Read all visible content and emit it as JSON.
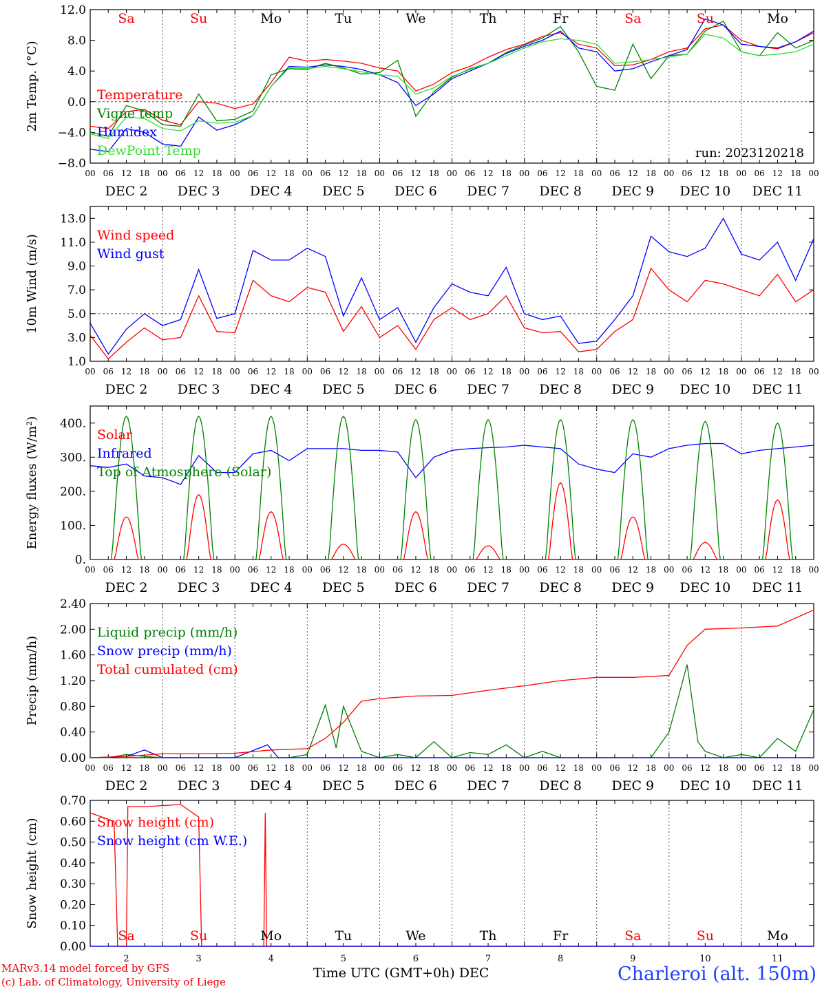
{
  "run_label": "run: 2023120218",
  "station": "Charleroi (alt. 150m)",
  "credit_line1": "MARv3.14 model forced by GFS",
  "credit_line2": "(c) Lab. of Climatology, University of Liege",
  "x_axis_title": "Time UTC (GMT+0h)",
  "x_axis_month": "DEC",
  "colors": {
    "red": "#ff0000",
    "green": "#008000",
    "blue": "#0000ff",
    "lightgreen": "#33dd33",
    "weekend": "#e8000b"
  },
  "day_names": [
    "Sa",
    "Su",
    "Mo",
    "Tu",
    "We",
    "Th",
    "Fr",
    "Sa",
    "Su",
    "Mo"
  ],
  "weekend_flags": [
    true,
    true,
    false,
    false,
    false,
    false,
    false,
    true,
    true,
    false
  ],
  "day_numbers": [
    "2",
    "3",
    "4",
    "5",
    "6",
    "7",
    "8",
    "9",
    "10",
    "11"
  ],
  "hour_ticks": [
    "00",
    "06",
    "12",
    "18"
  ],
  "last_hour_tick": "00",
  "chart_data": [
    {
      "type": "line",
      "ylabel": "2m Temp. (°C)",
      "ylim": [
        -8,
        12
      ],
      "yticks": [
        "12.0",
        "8.0",
        "4.0",
        "0.0",
        "−4.0",
        "−8.0"
      ],
      "yticks_values": [
        12,
        8,
        4,
        0,
        -4,
        -8
      ],
      "reference_line": 0,
      "x_unit": "days since 2023-12-02 00 UTC",
      "series": [
        {
          "name": "Temperature",
          "color": "red",
          "x": [
            0,
            0.25,
            0.5,
            0.75,
            1,
            1.25,
            1.5,
            1.75,
            2,
            2.25,
            2.5,
            2.75,
            3,
            3.25,
            3.5,
            3.75,
            4,
            4.25,
            4.5,
            4.75,
            5,
            5.25,
            5.5,
            5.75,
            6,
            6.25,
            6.5,
            6.75,
            7,
            7.25,
            7.5,
            7.75,
            8,
            8.25,
            8.5,
            8.75,
            9,
            9.25,
            9.5,
            9.75,
            10
          ],
          "y": [
            -3.2,
            -3.5,
            -1.3,
            -1.0,
            -2.4,
            -3.0,
            0.0,
            -0.2,
            -0.9,
            -0.3,
            2.5,
            5.8,
            5.3,
            5.5,
            5.3,
            5.0,
            4.4,
            4.0,
            1.4,
            2.3,
            3.8,
            4.6,
            5.8,
            6.8,
            7.5,
            8.5,
            9.0,
            7.5,
            7.0,
            4.7,
            4.8,
            5.5,
            6.5,
            7.0,
            9.5,
            10.0,
            8.0,
            7.2,
            6.9,
            7.8,
            9.0
          ]
        },
        {
          "name": "Vigne temp",
          "color": "green",
          "x": [
            0,
            0.25,
            0.5,
            0.75,
            1,
            1.25,
            1.5,
            1.75,
            2,
            2.25,
            2.5,
            2.75,
            3,
            3.25,
            3.5,
            3.75,
            4,
            4.25,
            4.5,
            4.75,
            5,
            5.25,
            5.5,
            5.75,
            6,
            6.25,
            6.5,
            6.75,
            7,
            7.25,
            7.5,
            7.75,
            8,
            8.25,
            8.5,
            8.75,
            9,
            9.25,
            9.5,
            9.75,
            10
          ],
          "y": [
            -4.0,
            -4.5,
            -0.5,
            -1.2,
            -3.0,
            -3.2,
            1.0,
            -2.5,
            -2.3,
            -1.2,
            3.5,
            4.3,
            4.2,
            5.0,
            4.4,
            3.6,
            3.8,
            5.4,
            -1.9,
            1.3,
            3.2,
            4.3,
            5.0,
            6.4,
            7.4,
            8.3,
            9.8,
            6.5,
            2.0,
            1.5,
            7.5,
            3.0,
            6.0,
            6.2,
            9.2,
            10.5,
            6.5,
            6.0,
            9.0,
            7.0,
            8.0
          ]
        },
        {
          "name": "Humidex",
          "color": "blue",
          "x": [
            0,
            0.25,
            0.5,
            0.75,
            1,
            1.25,
            1.5,
            1.75,
            2,
            2.25,
            2.5,
            2.75,
            3,
            3.25,
            3.5,
            3.75,
            4,
            4.25,
            4.5,
            4.75,
            5,
            5.25,
            5.5,
            5.75,
            6,
            6.25,
            6.5,
            6.75,
            7,
            7.25,
            7.5,
            7.75,
            8,
            8.25,
            8.5,
            8.75,
            9,
            9.25,
            9.5,
            9.75,
            10
          ],
          "y": [
            -6.2,
            -6.5,
            -3.5,
            -4.0,
            -5.5,
            -5.8,
            -2.0,
            -3.7,
            -3.0,
            -1.8,
            2.0,
            4.6,
            4.5,
            4.8,
            4.6,
            4.2,
            3.5,
            2.5,
            -0.5,
            1.0,
            3.0,
            4.0,
            5.0,
            6.3,
            7.2,
            8.0,
            9.2,
            7.0,
            6.5,
            4.0,
            4.3,
            5.2,
            6.0,
            6.8,
            10.8,
            10.0,
            7.5,
            7.2,
            7.0,
            7.8,
            9.2
          ]
        },
        {
          "name": "DewPoint Temp",
          "color": "lightgreen",
          "x": [
            0,
            0.25,
            0.5,
            0.75,
            1,
            1.25,
            1.5,
            1.75,
            2,
            2.25,
            2.5,
            2.75,
            3,
            3.25,
            3.5,
            3.75,
            4,
            4.25,
            4.5,
            4.75,
            5,
            5.25,
            5.5,
            5.75,
            6,
            6.25,
            6.5,
            6.75,
            7,
            7.25,
            7.5,
            7.75,
            8,
            8.25,
            8.5,
            8.75,
            9,
            9.25,
            9.5,
            9.75,
            10
          ],
          "y": [
            -4.2,
            -4.8,
            -2.0,
            -2.2,
            -3.5,
            -3.8,
            -2.5,
            -2.8,
            -2.7,
            -1.8,
            2.0,
            4.4,
            4.3,
            4.6,
            4.3,
            3.9,
            3.5,
            3.3,
            1.0,
            1.8,
            3.3,
            4.2,
            5.0,
            6.0,
            7.0,
            7.8,
            8.2,
            8.0,
            7.5,
            5.0,
            5.2,
            5.5,
            5.8,
            6.2,
            8.8,
            8.3,
            6.5,
            6.0,
            6.2,
            6.5,
            7.5
          ]
        }
      ],
      "legend": [
        "Temperature",
        "Vigne temp",
        "Humidex",
        "DewPoint Temp"
      ]
    },
    {
      "type": "line",
      "ylabel": "10m Wind (m/s)",
      "ylim": [
        1,
        14
      ],
      "yticks": [
        "13.0",
        "11.0",
        "9.0",
        "7.0",
        "5.0",
        "3.0",
        "1.0"
      ],
      "yticks_values": [
        13,
        11,
        9,
        7,
        5,
        3,
        1
      ],
      "reference_line": 5,
      "series": [
        {
          "name": "Wind speed",
          "color": "red",
          "x": [
            0,
            0.25,
            0.5,
            0.75,
            1,
            1.25,
            1.5,
            1.75,
            2,
            2.25,
            2.5,
            2.75,
            3,
            3.25,
            3.5,
            3.75,
            4,
            4.25,
            4.5,
            4.75,
            5,
            5.25,
            5.5,
            5.75,
            6,
            6.25,
            6.5,
            6.75,
            7,
            7.25,
            7.5,
            7.75,
            8,
            8.25,
            8.5,
            8.75,
            9,
            9.25,
            9.5,
            9.75,
            10
          ],
          "y": [
            3.2,
            1.2,
            2.6,
            3.8,
            2.8,
            3.0,
            6.5,
            3.5,
            3.4,
            7.8,
            6.5,
            6.0,
            7.2,
            6.8,
            3.5,
            5.6,
            3.0,
            4.0,
            2.0,
            4.5,
            5.5,
            4.5,
            5.0,
            6.5,
            3.8,
            3.4,
            3.5,
            1.8,
            2.0,
            3.5,
            4.5,
            8.8,
            7.0,
            6.0,
            7.8,
            7.5,
            7.0,
            6.5,
            8.3,
            6.0,
            7.0
          ]
        },
        {
          "name": "Wind gust",
          "color": "blue",
          "x": [
            0,
            0.25,
            0.5,
            0.75,
            1,
            1.25,
            1.5,
            1.75,
            2,
            2.25,
            2.5,
            2.75,
            3,
            3.25,
            3.5,
            3.75,
            4,
            4.25,
            4.5,
            4.75,
            5,
            5.25,
            5.5,
            5.75,
            6,
            6.25,
            6.5,
            6.75,
            7,
            7.25,
            7.5,
            7.75,
            8,
            8.25,
            8.5,
            8.75,
            9,
            9.25,
            9.5,
            9.75,
            10
          ],
          "y": [
            4.2,
            1.6,
            3.7,
            5.0,
            4.0,
            4.5,
            8.7,
            4.6,
            5.0,
            10.3,
            9.5,
            9.5,
            10.5,
            9.8,
            4.8,
            8.0,
            4.5,
            5.5,
            2.6,
            5.5,
            7.5,
            6.8,
            6.5,
            8.9,
            5.0,
            4.5,
            4.8,
            2.5,
            2.7,
            4.5,
            6.5,
            11.5,
            10.2,
            9.8,
            10.5,
            13.0,
            10.0,
            9.5,
            11.0,
            7.8,
            11.3
          ]
        }
      ],
      "legend": [
        "Wind speed",
        "Wind gust"
      ]
    },
    {
      "type": "line",
      "ylabel": "Energy fluxes (W/m²)",
      "ylim": [
        0,
        450
      ],
      "yticks": [
        "400.",
        "300.",
        "200.",
        "100.",
        "0."
      ],
      "yticks_values": [
        400,
        300,
        200,
        100,
        0
      ],
      "series": [
        {
          "name": "Solar",
          "color": "red",
          "day_peaks": [
            125,
            190,
            140,
            45,
            140,
            40,
            225,
            125,
            50,
            175
          ]
        },
        {
          "name": "Infrared",
          "color": "blue",
          "x": [
            0,
            0.25,
            0.5,
            0.75,
            1,
            1.25,
            1.5,
            1.75,
            2,
            2.25,
            2.5,
            2.75,
            3,
            3.25,
            3.5,
            3.75,
            4,
            4.25,
            4.5,
            4.75,
            5,
            5.25,
            5.5,
            5.75,
            6,
            6.25,
            6.5,
            6.75,
            7,
            7.25,
            7.5,
            7.75,
            8,
            8.25,
            8.5,
            8.75,
            9,
            9.25,
            9.5,
            9.75,
            10
          ],
          "y": [
            275,
            270,
            280,
            245,
            240,
            220,
            305,
            255,
            255,
            310,
            320,
            290,
            325,
            325,
            325,
            320,
            320,
            315,
            240,
            300,
            320,
            325,
            328,
            330,
            335,
            330,
            325,
            280,
            265,
            255,
            310,
            300,
            325,
            335,
            340,
            340,
            310,
            320,
            325,
            330,
            335
          ]
        },
        {
          "name": "Top of Atmosphere (Solar)",
          "color": "green",
          "day_peaks": [
            420,
            420,
            420,
            420,
            410,
            410,
            410,
            410,
            405,
            400
          ]
        }
      ],
      "legend": [
        "Solar",
        "Infrared",
        "Top of Atmosphere (Solar)"
      ]
    },
    {
      "type": "line",
      "ylabel": "Precip (mm/h)",
      "ylim": [
        0,
        2.4
      ],
      "yticks": [
        "2.40",
        "2.00",
        "1.60",
        "1.20",
        "0.80",
        "0.40",
        "0.00"
      ],
      "yticks_values": [
        2.4,
        2.0,
        1.6,
        1.2,
        0.8,
        0.4,
        0.0
      ],
      "series": [
        {
          "name": "Liquid precip (mm/h)",
          "color": "green",
          "x": [
            0,
            0.25,
            0.5,
            0.75,
            1,
            1.25,
            1.5,
            1.75,
            2,
            2.25,
            2.5,
            2.75,
            3,
            3.25,
            3.4,
            3.5,
            3.75,
            4,
            4.25,
            4.5,
            4.75,
            5,
            5.25,
            5.5,
            5.75,
            6,
            6.25,
            6.5,
            6.75,
            7,
            7.25,
            7.5,
            7.75,
            8,
            8.25,
            8.4,
            8.5,
            8.75,
            9,
            9.25,
            9.5,
            9.75,
            10
          ],
          "y": [
            0.0,
            0.0,
            0.05,
            0.02,
            0.0,
            0.0,
            0.0,
            0.0,
            0.0,
            0.0,
            0.0,
            0.0,
            0.05,
            0.82,
            0.15,
            0.8,
            0.1,
            0.0,
            0.05,
            0.0,
            0.25,
            0.0,
            0.08,
            0.05,
            0.2,
            0.0,
            0.1,
            0.0,
            0.0,
            0.0,
            0.0,
            0.0,
            0.0,
            0.4,
            1.45,
            0.25,
            0.1,
            0.0,
            0.05,
            0.0,
            0.3,
            0.1,
            0.75
          ]
        },
        {
          "name": "Snow precip (mm/h)",
          "color": "blue",
          "x": [
            0,
            0.5,
            0.75,
            1,
            2,
            2.45,
            2.6,
            3,
            4,
            5,
            6,
            10
          ],
          "y": [
            0.0,
            0.02,
            0.12,
            0.0,
            0.0,
            0.2,
            0.0,
            0.0,
            0.0,
            0.0,
            0.0,
            0.0
          ]
        },
        {
          "name": "Total cumulated (cm)",
          "color": "red",
          "x": [
            0,
            0.5,
            1,
            1.5,
            2,
            2.5,
            3,
            3.25,
            3.5,
            3.75,
            4,
            4.5,
            5,
            5.5,
            6,
            6.5,
            7,
            7.5,
            8,
            8.25,
            8.5,
            9,
            9.5,
            10
          ],
          "y": [
            0.0,
            0.02,
            0.06,
            0.06,
            0.07,
            0.12,
            0.14,
            0.3,
            0.55,
            0.88,
            0.92,
            0.96,
            0.97,
            1.05,
            1.12,
            1.2,
            1.25,
            1.25,
            1.28,
            1.75,
            2.0,
            2.02,
            2.05,
            2.3
          ]
        }
      ],
      "legend": [
        "Liquid precip (mm/h)",
        "Snow precip (mm/h)",
        "Total cumulated (cm)"
      ]
    },
    {
      "type": "line",
      "ylabel": "Snow height (cm)",
      "ylim": [
        0,
        0.7
      ],
      "yticks": [
        "0.70",
        "0.60",
        "0.50",
        "0.40",
        "0.30",
        "0.20",
        "0.10",
        "0.00"
      ],
      "yticks_values": [
        0.7,
        0.6,
        0.5,
        0.4,
        0.3,
        0.2,
        0.1,
        0.0
      ],
      "series": [
        {
          "name": "Snow height (cm)",
          "color": "red",
          "x": [
            0,
            0.33,
            0.38,
            0.5,
            0.5,
            0.52,
            0.75,
            1.0,
            1.25,
            1.5,
            1.54,
            1.6,
            2.0,
            2.4,
            2.42,
            2.44,
            2.46,
            10
          ],
          "y": [
            0.64,
            0.6,
            0.0,
            0.0,
            0.0,
            0.67,
            0.67,
            0.675,
            0.68,
            0.62,
            0.0,
            0.0,
            0.0,
            0.0,
            0.64,
            0.0,
            0.0,
            0.0
          ]
        },
        {
          "name": "Snow height (cm W.E.)",
          "color": "blue",
          "x": [
            0,
            10
          ],
          "y": [
            0,
            0
          ]
        }
      ],
      "legend": [
        "Snow height (cm)",
        "Snow height (cm W.E.)"
      ]
    }
  ]
}
